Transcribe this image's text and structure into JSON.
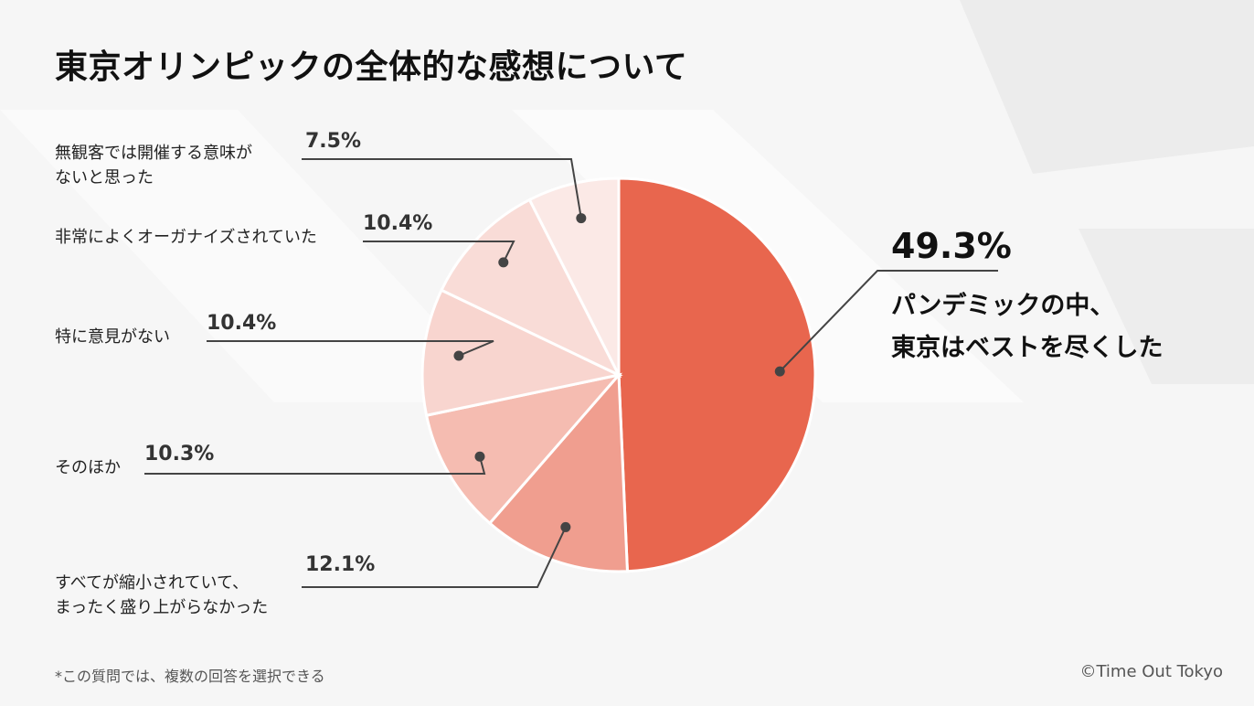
{
  "title": "東京オリンピックの全体的な感想について",
  "footnote": "*この質問では、複数の回答を選択できる",
  "credit": "©Time Out Tokyo",
  "chart_data": {
    "type": "pie",
    "title": "東京オリンピックの全体的な感想について",
    "slices": [
      {
        "label": "パンデミックの中、\n東京はベストを尽くした",
        "value": 49.3,
        "value_label": "49.3%",
        "color": "#e8664e"
      },
      {
        "label": "すべてが縮小されていて、\nまったく盛り上がらなかった",
        "value": 12.1,
        "value_label": "12.1%",
        "color": "#f09e8f"
      },
      {
        "label": "そのほか",
        "value": 10.3,
        "value_label": "10.3%",
        "color": "#f5bcb1"
      },
      {
        "label": "特に意見がない",
        "value": 10.4,
        "value_label": "10.4%",
        "color": "#f8d5cf"
      },
      {
        "label": "非常によくオーガナイズされていた",
        "value": 10.4,
        "value_label": "10.4%",
        "color": "#f9dcd7"
      },
      {
        "label": "無観客では開催する意味が\nないと思った",
        "value": 7.5,
        "value_label": "7.5%",
        "color": "#fbe9e6"
      }
    ],
    "start": "12 o'clock",
    "direction": "clockwise",
    "legend": "none"
  }
}
